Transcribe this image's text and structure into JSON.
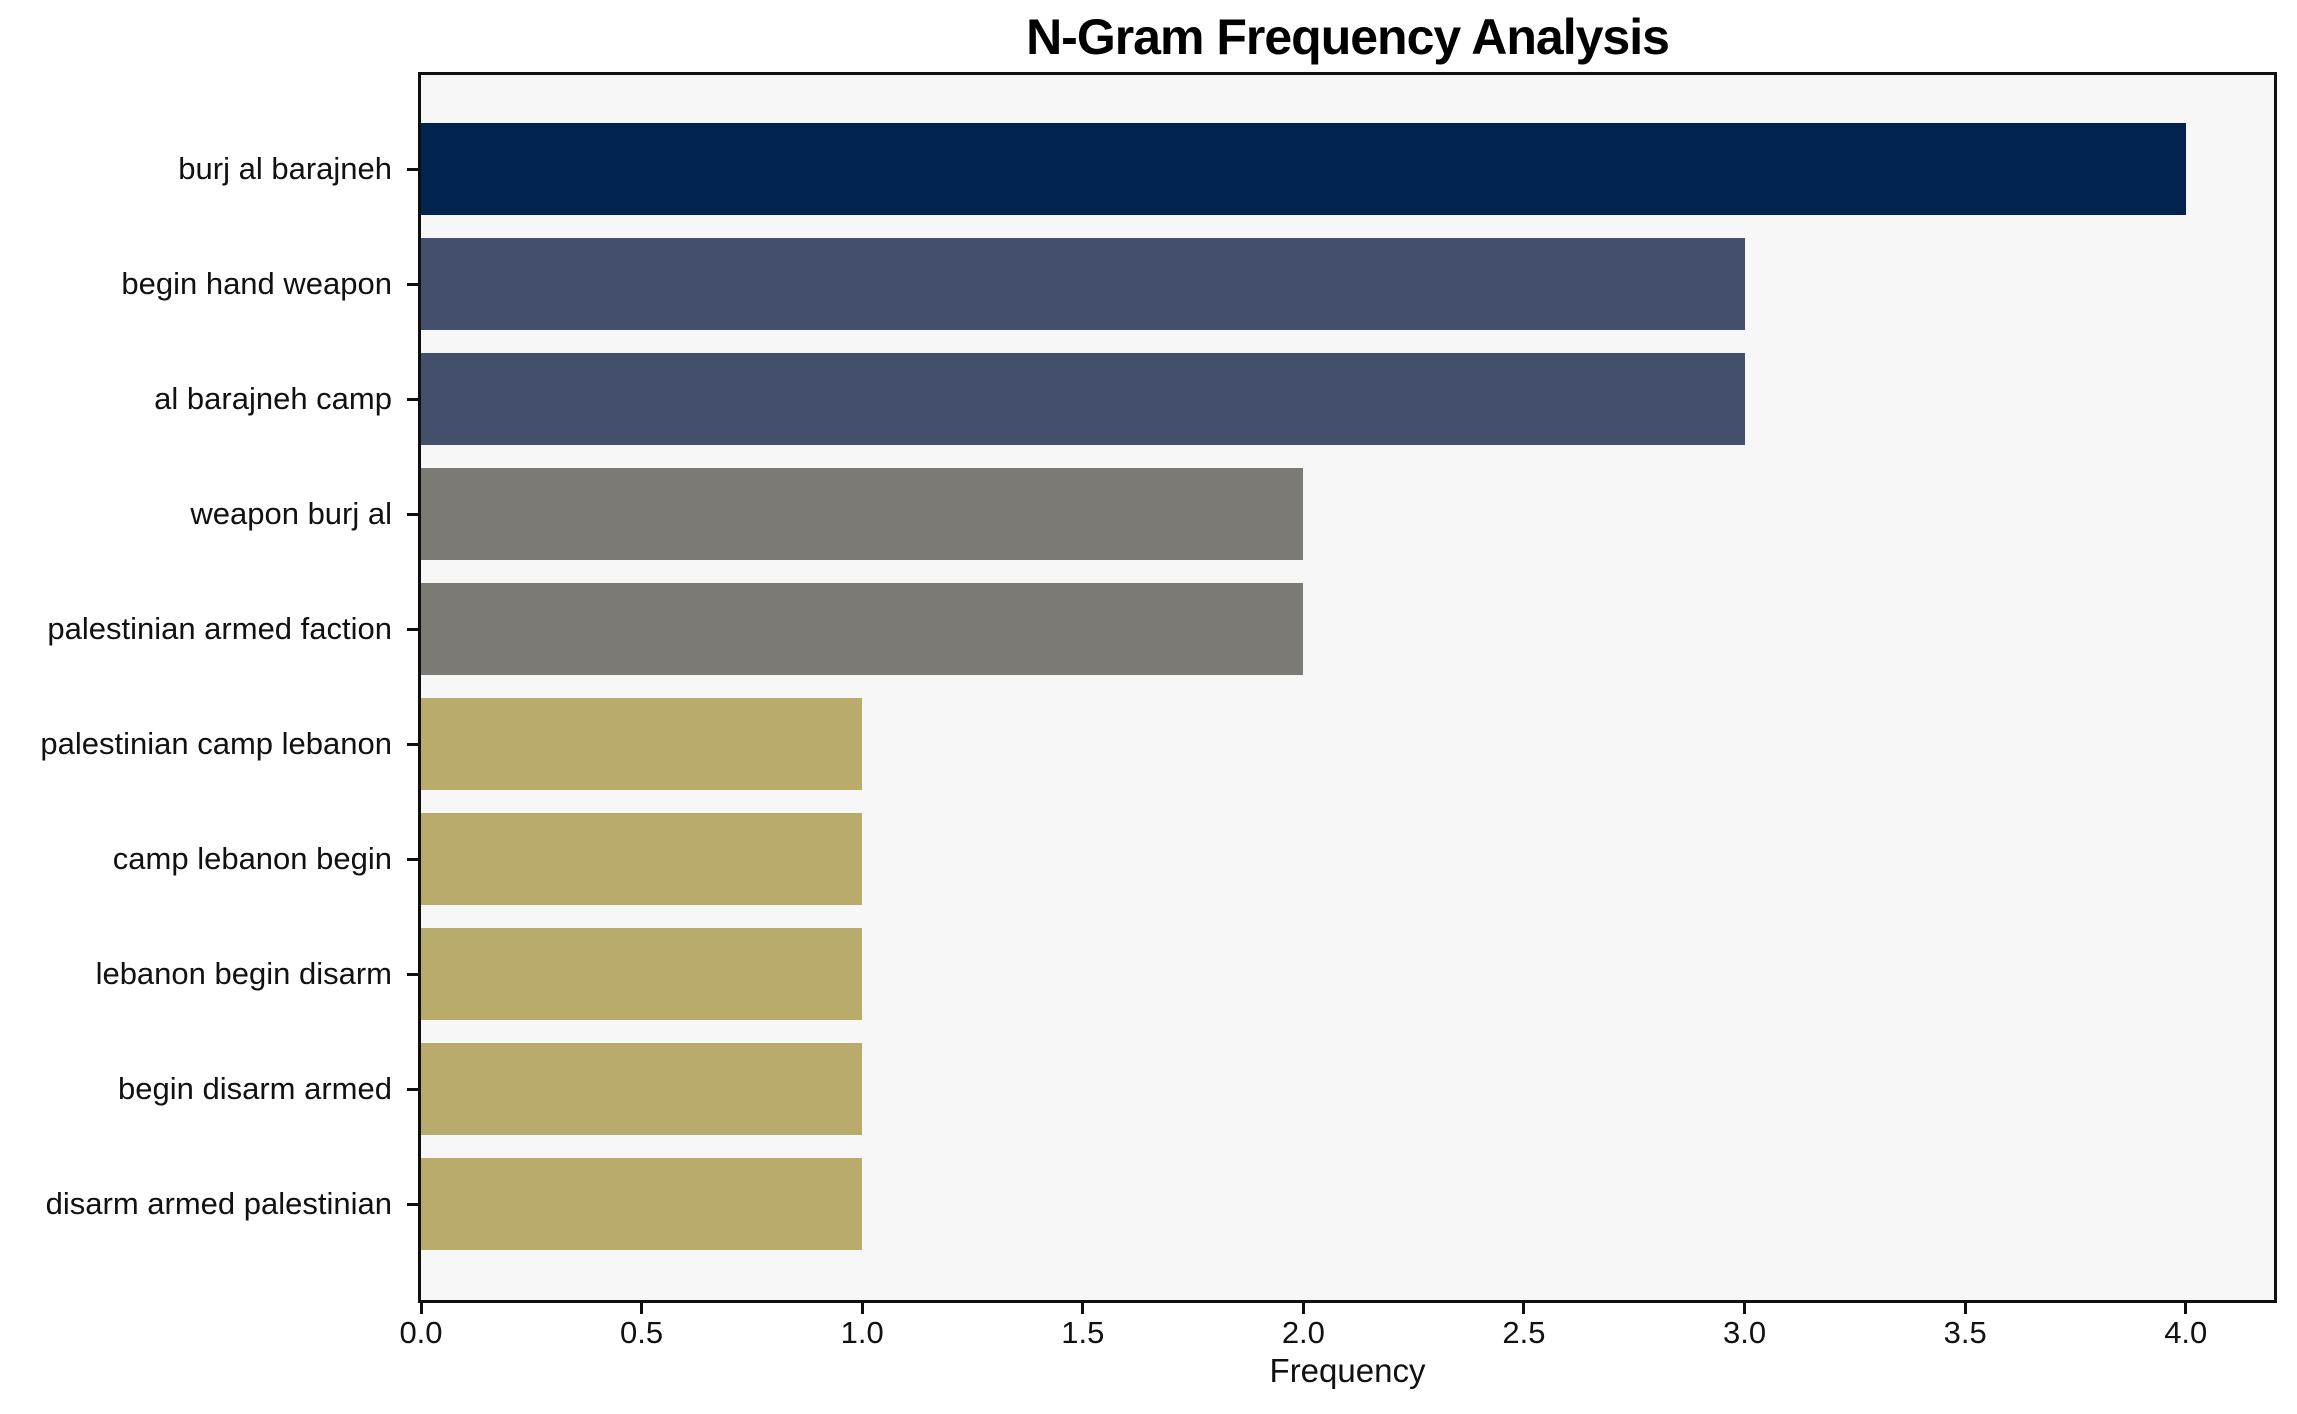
{
  "chart_data": {
    "type": "bar",
    "orientation": "horizontal",
    "title": "N-Gram Frequency Analysis",
    "xlabel": "Frequency",
    "categories": [
      "burj al barajneh",
      "begin hand weapon",
      "al barajneh camp",
      "weapon burj al",
      "palestinian armed faction",
      "palestinian camp lebanon",
      "camp lebanon begin",
      "lebanon begin disarm",
      "begin disarm armed",
      "disarm armed palestinian"
    ],
    "values": [
      4,
      3,
      3,
      2,
      2,
      1,
      1,
      1,
      1,
      1
    ],
    "bar_colors": [
      "#02234d",
      "#44506b",
      "#44506b",
      "#7b7a74",
      "#7b7a74",
      "#b8ab6c",
      "#b8ab6c",
      "#b8ab6c",
      "#b8ab6c",
      "#b8ab6c"
    ],
    "xlim": [
      0.0,
      4.2
    ],
    "xtick_values": [
      0.0,
      0.5,
      1.0,
      1.5,
      2.0,
      2.5,
      3.0,
      3.5,
      4.0
    ],
    "xticks": [
      "0.0",
      "0.5",
      "1.0",
      "1.5",
      "2.0",
      "2.5",
      "3.0",
      "3.5",
      "4.0"
    ],
    "grid": false,
    "legend_position": "none",
    "plot_background": "#f7f7f7",
    "figure_background": "#ffffff",
    "spine_color": "#0f0f0f",
    "text_color": "#111111"
  }
}
